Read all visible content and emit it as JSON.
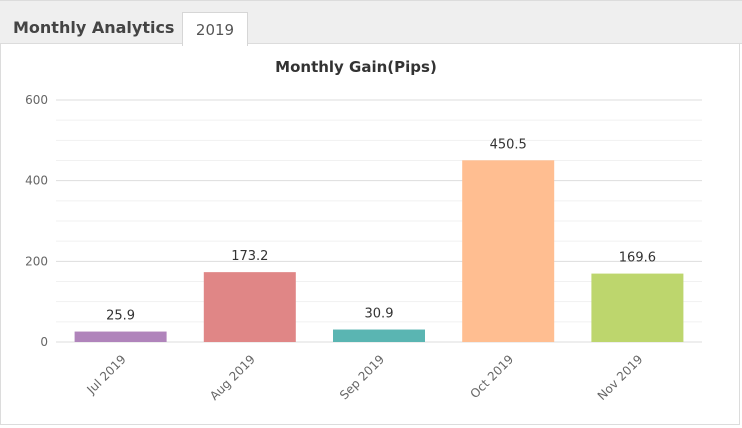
{
  "panel": {
    "title": "Monthly Analytics",
    "tab_label": "2019"
  },
  "chart_data": {
    "type": "bar",
    "title": "Monthly Gain(Pips)",
    "categories": [
      "Jul 2019",
      "Aug 2019",
      "Sep 2019",
      "Oct 2019",
      "Nov 2019"
    ],
    "values": [
      25.9,
      173.2,
      30.9,
      450.5,
      169.6
    ],
    "value_labels": [
      "25.9",
      "173.2",
      "30.9",
      "450.5",
      "169.6"
    ],
    "colors": [
      "#b084bb",
      "#e08686",
      "#5ab5b2",
      "#ffbe91",
      "#bdd66d"
    ],
    "ylim": [
      0,
      600
    ],
    "yticks": [
      0,
      200,
      400,
      600
    ],
    "ytick_labels": [
      "0",
      "200",
      "400",
      "600"
    ],
    "xlabel": "",
    "ylabel": "",
    "grid": true,
    "legend": "none"
  }
}
